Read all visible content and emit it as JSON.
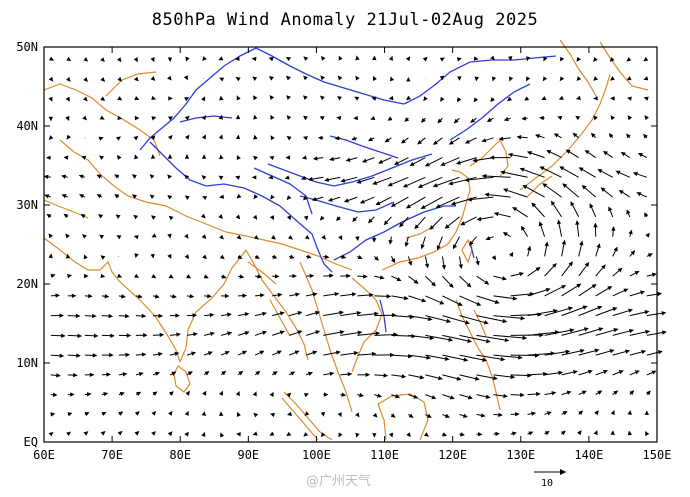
{
  "title": "850hPa Wind Anomaly 21Jul-02Aug 2025",
  "lat_labels": [
    "50N",
    "40N",
    "30N",
    "20N",
    "10N",
    "EQ"
  ],
  "lon_labels": [
    "60E",
    "70E",
    "80E",
    "90E",
    "100E",
    "110E",
    "120E",
    "130E",
    "140E",
    "150E"
  ],
  "reference_vector": {
    "label": "10"
  },
  "watermark": "@广州天气",
  "colors": {
    "coastline": "#e08a2c",
    "rivers": "#2d3fd6",
    "vectors": "#000000",
    "frame": "#000000"
  },
  "map_extent": {
    "lon": [
      60,
      150
    ],
    "lat": [
      0,
      50
    ]
  },
  "vector_grid_spacing_deg": 2.5
}
